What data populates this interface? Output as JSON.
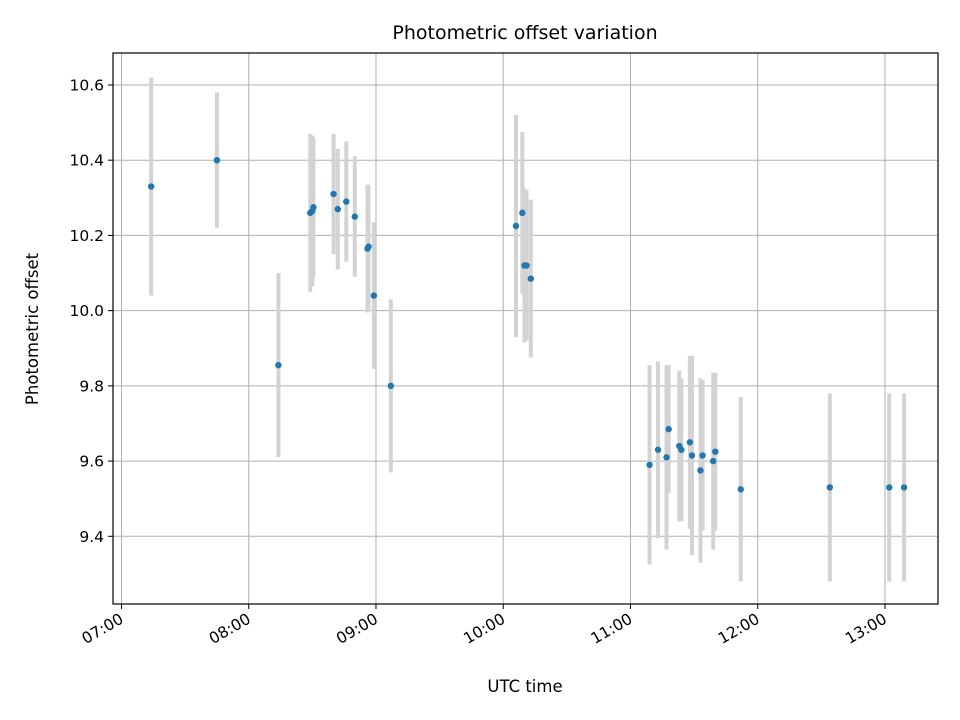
{
  "chart_data": {
    "type": "scatter",
    "title": "Photometric offset variation",
    "xlabel": "UTC time",
    "ylabel": "Photometric offset",
    "xlim": [
      "06:56",
      "13:25"
    ],
    "ylim": [
      9.22,
      10.685
    ],
    "x_ticks": [
      "07:00",
      "08:00",
      "09:00",
      "10:00",
      "11:00",
      "12:00",
      "13:00"
    ],
    "y_ticks": [
      9.4,
      9.6,
      9.8,
      10.0,
      10.2,
      10.4,
      10.6
    ],
    "y_tick_labels": [
      "9.4",
      "9.6",
      "9.8",
      "10.0",
      "10.2",
      "10.4",
      "10.6"
    ],
    "grid": true,
    "colors": {
      "point": "#1f77b4",
      "error_bar": "#d3d3d3",
      "grid": "#b0b0b0"
    },
    "series": [
      {
        "points": [
          {
            "x": "07:14",
            "y": 10.33,
            "err": 0.29
          },
          {
            "x": "07:45",
            "y": 10.4,
            "err": 0.18
          },
          {
            "x": "08:14",
            "y": 9.855,
            "err": 0.245
          },
          {
            "x": "08:29",
            "y": 10.26,
            "err": 0.21
          },
          {
            "x": "08:30",
            "y": 10.265,
            "err": 0.2
          },
          {
            "x": "08:30.5",
            "y": 10.275,
            "err": 0.185
          },
          {
            "x": "08:40",
            "y": 10.31,
            "err": 0.16
          },
          {
            "x": "08:42",
            "y": 10.27,
            "err": 0.16
          },
          {
            "x": "08:46",
            "y": 10.29,
            "err": 0.16
          },
          {
            "x": "08:50",
            "y": 10.25,
            "err": 0.16
          },
          {
            "x": "08:56",
            "y": 10.165,
            "err": 0.17
          },
          {
            "x": "08:56.5",
            "y": 10.17,
            "err": 0.165
          },
          {
            "x": "08:59",
            "y": 10.04,
            "err": 0.195
          },
          {
            "x": "09:07",
            "y": 9.8,
            "err": 0.23
          },
          {
            "x": "10:06",
            "y": 10.225,
            "err": 0.295
          },
          {
            "x": "10:09",
            "y": 10.26,
            "err": 0.215
          },
          {
            "x": "10:10",
            "y": 10.12,
            "err": 0.205
          },
          {
            "x": "10:11",
            "y": 10.12,
            "err": 0.2
          },
          {
            "x": "10:13",
            "y": 10.085,
            "err": 0.21
          },
          {
            "x": "11:09",
            "y": 9.59,
            "err": 0.265
          },
          {
            "x": "11:13",
            "y": 9.63,
            "err": 0.235
          },
          {
            "x": "11:17",
            "y": 9.61,
            "err": 0.245
          },
          {
            "x": "11:18",
            "y": 9.685,
            "err": 0.17
          },
          {
            "x": "11:23",
            "y": 9.64,
            "err": 0.2
          },
          {
            "x": "11:24",
            "y": 9.63,
            "err": 0.19
          },
          {
            "x": "11:28",
            "y": 9.65,
            "err": 0.23
          },
          {
            "x": "11:29",
            "y": 9.615,
            "err": 0.265
          },
          {
            "x": "11:33",
            "y": 9.575,
            "err": 0.245
          },
          {
            "x": "11:34",
            "y": 9.615,
            "err": 0.2
          },
          {
            "x": "11:39",
            "y": 9.6,
            "err": 0.235
          },
          {
            "x": "11:40",
            "y": 9.625,
            "err": 0.21
          },
          {
            "x": "11:52",
            "y": 9.525,
            "err": 0.245
          },
          {
            "x": "12:34",
            "y": 9.53,
            "err": 0.25
          },
          {
            "x": "13:02",
            "y": 9.53,
            "err": 0.25
          },
          {
            "x": "13:09",
            "y": 9.53,
            "err": 0.25
          }
        ]
      }
    ]
  }
}
